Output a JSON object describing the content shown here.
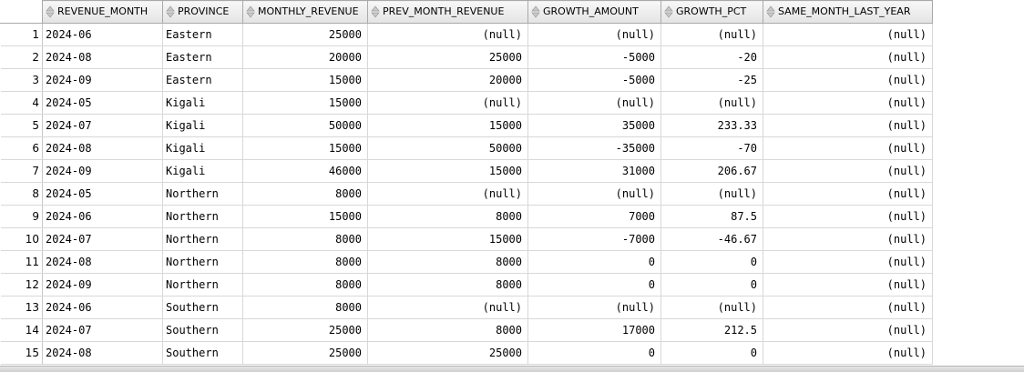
{
  "columns": [
    "REVENUE_MONTH",
    "PROVINCE",
    "MONTHLY_REVENUE",
    "PREV_MONTH_REVENUE",
    "GROWTH_AMOUNT",
    "GROWTH_PCT",
    "SAME_MONTH_LAST_YEAR"
  ],
  "rows": [
    {
      "n": "1",
      "cells": [
        "2024-06",
        "Eastern",
        "25000",
        "(null)",
        "(null)",
        "(null)",
        "(null)"
      ]
    },
    {
      "n": "2",
      "cells": [
        "2024-08",
        "Eastern",
        "20000",
        "25000",
        "-5000",
        "-20",
        "(null)"
      ]
    },
    {
      "n": "3",
      "cells": [
        "2024-09",
        "Eastern",
        "15000",
        "20000",
        "-5000",
        "-25",
        "(null)"
      ]
    },
    {
      "n": "4",
      "cells": [
        "2024-05",
        "Kigali",
        "15000",
        "(null)",
        "(null)",
        "(null)",
        "(null)"
      ]
    },
    {
      "n": "5",
      "cells": [
        "2024-07",
        "Kigali",
        "50000",
        "15000",
        "35000",
        "233.33",
        "(null)"
      ]
    },
    {
      "n": "6",
      "cells": [
        "2024-08",
        "Kigali",
        "15000",
        "50000",
        "-35000",
        "-70",
        "(null)"
      ]
    },
    {
      "n": "7",
      "cells": [
        "2024-09",
        "Kigali",
        "46000",
        "15000",
        "31000",
        "206.67",
        "(null)"
      ]
    },
    {
      "n": "8",
      "cells": [
        "2024-05",
        "Northern",
        "8000",
        "(null)",
        "(null)",
        "(null)",
        "(null)"
      ]
    },
    {
      "n": "9",
      "cells": [
        "2024-06",
        "Northern",
        "15000",
        "8000",
        "7000",
        "87.5",
        "(null)"
      ]
    },
    {
      "n": "10",
      "cells": [
        "2024-07",
        "Northern",
        "8000",
        "15000",
        "-7000",
        "-46.67",
        "(null)"
      ]
    },
    {
      "n": "11",
      "cells": [
        "2024-08",
        "Northern",
        "8000",
        "8000",
        "0",
        "0",
        "(null)"
      ]
    },
    {
      "n": "12",
      "cells": [
        "2024-09",
        "Northern",
        "8000",
        "8000",
        "0",
        "0",
        "(null)"
      ]
    },
    {
      "n": "13",
      "cells": [
        "2024-06",
        "Southern",
        "8000",
        "(null)",
        "(null)",
        "(null)",
        "(null)"
      ]
    },
    {
      "n": "14",
      "cells": [
        "2024-07",
        "Southern",
        "25000",
        "8000",
        "17000",
        "212.5",
        "(null)"
      ]
    },
    {
      "n": "15",
      "cells": [
        "2024-08",
        "Southern",
        "25000",
        "25000",
        "0",
        "0",
        "(null)"
      ]
    }
  ]
}
